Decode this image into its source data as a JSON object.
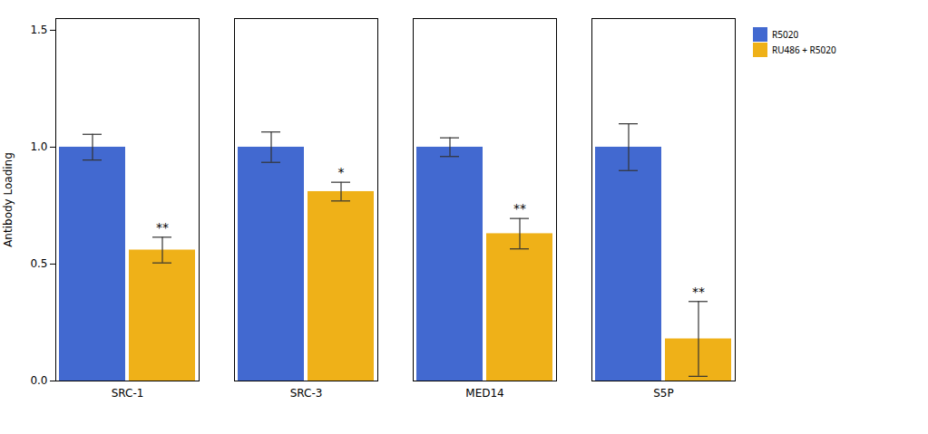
{
  "chart_data": {
    "type": "bar",
    "categories": [
      "SRC-1",
      "SRC-3",
      "MED14",
      "S5P"
    ],
    "series": [
      {
        "name": "R5020",
        "values": [
          1.0,
          1.0,
          1.0,
          1.0
        ],
        "errors": [
          0.055,
          0.065,
          0.04,
          0.1
        ]
      },
      {
        "name": "RU486 + R5020",
        "values": [
          0.56,
          0.81,
          0.63,
          0.18
        ],
        "errors": [
          0.055,
          0.04,
          0.065,
          0.16
        ],
        "annotations": [
          "**",
          "*",
          "**",
          "**"
        ]
      }
    ],
    "ylabel": "Antibody Loading",
    "ylim": [
      0,
      1.55
    ],
    "yticks": [
      0.0,
      0.5,
      1.0,
      1.5
    ],
    "legend": "upper right"
  }
}
